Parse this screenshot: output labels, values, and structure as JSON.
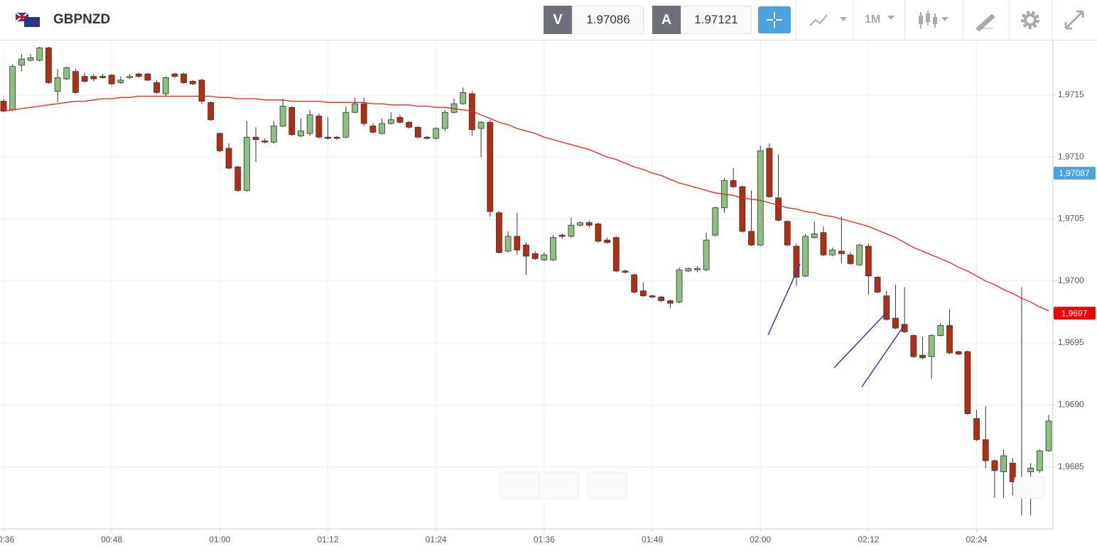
{
  "header": {
    "symbol": "GBPNZD",
    "bid_label": "V",
    "bid": 1.97086,
    "ask_label": "A",
    "ask": 1.97121,
    "timeframe": "1M"
  },
  "chart_data": {
    "type": "candlestick",
    "categories": [
      "00:36",
      null,
      null,
      null,
      null,
      null,
      null,
      null,
      null,
      null,
      null,
      null,
      "00:48",
      null,
      null,
      null,
      null,
      null,
      null,
      null,
      null,
      null,
      null,
      null,
      "01:00",
      null,
      null,
      null,
      null,
      null,
      null,
      null,
      null,
      null,
      null,
      null,
      "01:12",
      null,
      null,
      null,
      null,
      null,
      null,
      null,
      null,
      null,
      null,
      null,
      "01:24",
      null,
      null,
      null,
      null,
      null,
      null,
      null,
      null,
      null,
      null,
      null,
      "01:36",
      null,
      null,
      null,
      null,
      null,
      null,
      null,
      null,
      null,
      null,
      null,
      "01:48",
      null,
      null,
      null,
      null,
      null,
      null,
      null,
      null,
      null,
      null,
      null,
      "02:00",
      null,
      null,
      null,
      null,
      null,
      null,
      null,
      null,
      null,
      null,
      null,
      "02:12",
      null,
      null,
      null,
      null,
      null,
      null,
      null,
      null,
      null,
      null,
      null,
      "02:24",
      null,
      null,
      null,
      null,
      null,
      null,
      null,
      null
    ],
    "open": [
      1.97145,
      1.97138,
      1.97174,
      1.97178,
      1.97178,
      1.97188,
      1.97153,
      1.97163,
      1.97169,
      1.97165,
      1.97165,
      1.97165,
      1.97166,
      1.9716,
      1.97164,
      1.97167,
      1.97167,
      1.9716,
      1.97151,
      1.97167,
      1.97167,
      1.97161,
      1.97162,
      1.97144,
      1.97119,
      1.97107,
      1.97092,
      1.97073,
      1.97116,
      1.97113,
      1.97112,
      1.97125,
      1.9714,
      1.97117,
      1.97119,
      1.97133,
      1.97116,
      1.97116,
      1.97116,
      1.97136,
      1.97143,
      1.97125,
      1.97119,
      1.97127,
      1.97132,
      1.97128,
      1.97124,
      1.97116,
      1.97115,
      1.97123,
      1.97136,
      1.97143,
      1.97151,
      1.97123,
      1.97128,
      1.97055,
      1.97024,
      1.97036,
      1.97029,
      1.97022,
      1.97017,
      1.97017,
      1.97037,
      1.97036,
      1.97045,
      1.97047,
      1.97046,
      1.97033,
      1.97035,
      1.97008,
      1.97005,
      1.96992,
      1.96988,
      1.96987,
      1.96984,
      1.96983,
      1.97008,
      1.97009,
      1.97009,
      1.97037,
      1.97059,
      1.97081,
      1.97076,
      1.9704,
      1.97029,
      1.97107,
      1.97067,
      1.97048,
      1.97028,
      1.97004,
      1.97035,
      1.97039,
      1.97021,
      1.97024,
      1.97021,
      1.97013,
      1.97028,
      1.97003,
      1.96988,
      1.9697,
      1.96965,
      1.96956,
      1.9694,
      1.96939,
      1.96956,
      1.96964,
      1.96943,
      1.96943,
      1.96889,
      1.96872,
      1.96855,
      1.96846,
      1.96853,
      1.96838,
      1.96846,
      1.96847,
      1.96863
    ],
    "high": [
      1.97147,
      1.97175,
      1.97183,
      1.97183,
      1.97189,
      1.97189,
      1.97171,
      1.97173,
      1.97171,
      1.97168,
      1.97167,
      1.97167,
      1.97167,
      1.97165,
      1.97167,
      1.97168,
      1.97168,
      1.97162,
      1.97165,
      1.97168,
      1.97168,
      1.97162,
      1.97163,
      1.97145,
      1.9712,
      1.97111,
      1.97093,
      1.97129,
      1.97124,
      1.97115,
      1.97129,
      1.97147,
      1.97141,
      1.97131,
      1.97138,
      1.97135,
      1.97132,
      1.97117,
      1.97141,
      1.97148,
      1.97148,
      1.97127,
      1.97131,
      1.97136,
      1.97134,
      1.97129,
      1.97125,
      1.97117,
      1.97124,
      1.97138,
      1.97147,
      1.97156,
      1.97153,
      1.97129,
      1.9713,
      1.97056,
      1.9704,
      1.97055,
      1.97031,
      1.97024,
      1.97023,
      1.97037,
      1.97038,
      1.97051,
      1.97048,
      1.97049,
      1.97047,
      1.97035,
      1.97036,
      1.97009,
      1.97006,
      1.96999,
      1.96989,
      1.96988,
      1.96985,
      1.97011,
      1.97011,
      1.97012,
      1.97039,
      1.9706,
      1.97083,
      1.97091,
      1.97077,
      1.97073,
      1.97109,
      1.97111,
      1.97102,
      1.97049,
      1.9703,
      1.97038,
      1.97048,
      1.97044,
      1.97027,
      1.97052,
      1.97023,
      1.9703,
      1.9703,
      1.97004,
      1.96992,
      1.96997,
      1.96995,
      1.96957,
      1.96955,
      1.96957,
      1.96966,
      1.96977,
      1.96944,
      1.96944,
      1.96896,
      1.96899,
      1.96856,
      1.96864,
      1.96857,
      1.96995,
      1.96853,
      1.96864,
      1.96892
    ],
    "low": [
      1.97136,
      1.97137,
      1.97169,
      1.97177,
      1.97177,
      1.97159,
      1.97144,
      1.97162,
      1.97151,
      1.9716,
      1.97161,
      1.97163,
      1.97158,
      1.97159,
      1.97163,
      1.97164,
      1.97161,
      1.97151,
      1.97149,
      1.97164,
      1.97159,
      1.97158,
      1.97143,
      1.97129,
      1.97104,
      1.9709,
      1.97072,
      1.97072,
      1.97096,
      1.97111,
      1.97111,
      1.97124,
      1.97117,
      1.97116,
      1.97117,
      1.97115,
      1.97114,
      1.97114,
      1.97115,
      1.97135,
      1.97125,
      1.97119,
      1.97118,
      1.97126,
      1.97127,
      1.97123,
      1.97115,
      1.97114,
      1.97114,
      1.97121,
      1.97135,
      1.97142,
      1.97117,
      1.971,
      1.97052,
      1.97022,
      1.97023,
      1.97021,
      1.97005,
      1.97017,
      1.97016,
      1.97016,
      1.97034,
      1.97035,
      1.97044,
      1.97043,
      1.97031,
      1.9703,
      1.97007,
      1.97006,
      1.9699,
      1.96987,
      1.96986,
      1.96983,
      1.96978,
      1.96982,
      1.97007,
      1.97007,
      1.97008,
      1.97036,
      1.97055,
      1.97075,
      1.97039,
      1.97028,
      1.97028,
      1.97067,
      1.97048,
      1.97028,
      1.96996,
      1.97003,
      1.97034,
      1.9702,
      1.9702,
      1.97014,
      1.97013,
      1.97012,
      1.96989,
      1.9699,
      1.96968,
      1.96961,
      1.96958,
      1.96938,
      1.96937,
      1.96921,
      1.96955,
      1.96941,
      1.9694,
      1.96892,
      1.96871,
      1.96849,
      1.96825,
      1.96825,
      1.96827,
      1.96811,
      1.96811,
      1.96845,
      1.96862
    ],
    "close": [
      1.97137,
      1.97173,
      1.97179,
      1.9718,
      1.97188,
      1.9716,
      1.97164,
      1.97172,
      1.97152,
      1.97161,
      1.97163,
      1.97164,
      1.97159,
      1.97162,
      1.97165,
      1.97165,
      1.97162,
      1.97152,
      1.97164,
      1.97165,
      1.9716,
      1.97159,
      1.97145,
      1.9713,
      1.97105,
      1.97091,
      1.97073,
      1.97116,
      1.97114,
      1.97112,
      1.97125,
      1.97141,
      1.97118,
      1.97121,
      1.97134,
      1.97116,
      1.97115,
      1.97115,
      1.97136,
      1.97143,
      1.97127,
      1.9712,
      1.97127,
      1.9713,
      1.97128,
      1.97124,
      1.97116,
      1.97115,
      1.97123,
      1.97136,
      1.97143,
      1.97152,
      1.97122,
      1.97128,
      1.97056,
      1.97023,
      1.97036,
      1.97025,
      1.9702,
      1.97018,
      1.97021,
      1.97035,
      1.97036,
      1.97045,
      1.97047,
      1.97045,
      1.97032,
      1.97031,
      1.97008,
      1.97007,
      1.96991,
      1.96988,
      1.96987,
      1.96984,
      1.96982,
      1.97009,
      1.9701,
      1.9701,
      1.97033,
      1.97059,
      1.97081,
      1.97076,
      1.9704,
      1.97029,
      1.97105,
      1.97068,
      1.97049,
      1.97029,
      1.97003,
      1.97036,
      1.97038,
      1.97021,
      1.97025,
      1.97022,
      1.97014,
      1.97029,
      1.97004,
      1.96991,
      1.96969,
      1.96962,
      1.96959,
      1.96939,
      1.96938,
      1.96956,
      1.96964,
      1.96942,
      1.96941,
      1.96893,
      1.96872,
      1.96855,
      1.96847,
      1.96859,
      1.96838,
      1.96837,
      1.96849,
      1.96863,
      1.96887
    ],
    "up_color": "#8cc07f",
    "down_color": "#b52c12",
    "ma": {
      "color": "#e8231b",
      "values": [
        1.97137,
        1.97138,
        1.97139,
        1.9714,
        1.97141,
        1.97142,
        1.97143,
        1.97144,
        1.97145,
        1.97145,
        1.97146,
        1.97147,
        1.97147,
        1.97148,
        1.97148,
        1.97149,
        1.97149,
        1.97149,
        1.97149,
        1.97149,
        1.97149,
        1.97149,
        1.97149,
        1.97149,
        1.97148,
        1.97148,
        1.97147,
        1.97147,
        1.97147,
        1.97146,
        1.97146,
        1.97146,
        1.97145,
        1.97145,
        1.97145,
        1.97145,
        1.97144,
        1.97144,
        1.97144,
        1.97144,
        1.97144,
        1.97143,
        1.97143,
        1.97142,
        1.97142,
        1.97142,
        1.97141,
        1.97141,
        1.9714,
        1.9714,
        1.97139,
        1.97138,
        1.97137,
        1.97134,
        1.97131,
        1.97128,
        1.97126,
        1.97123,
        1.97121,
        1.97119,
        1.97116,
        1.97114,
        1.97112,
        1.9711,
        1.97108,
        1.97106,
        1.97103,
        1.971,
        1.97098,
        1.97095,
        1.97092,
        1.9709,
        1.97087,
        1.97085,
        1.97082,
        1.97079,
        1.97077,
        1.97075,
        1.97073,
        1.97071,
        1.9707,
        1.97069,
        1.97067,
        1.97066,
        1.97065,
        1.97063,
        1.97061,
        1.97059,
        1.97058,
        1.97056,
        1.97055,
        1.97053,
        1.97052,
        1.9705,
        1.97048,
        1.97046,
        1.97044,
        1.97041,
        1.97038,
        1.97035,
        1.97031,
        1.97027,
        1.97024,
        1.97021,
        1.97018,
        1.97015,
        1.97011,
        1.97008,
        1.97004,
        1.97,
        1.96997,
        1.96993,
        1.9699,
        1.96986,
        1.96983,
        1.96979,
        1.96976
      ]
    },
    "ylim": [
      1.968,
      1.97194
    ],
    "yticks": [
      {
        "value": 1.9685,
        "label": "1,9685"
      },
      {
        "value": 1.969,
        "label": "1,9690"
      },
      {
        "value": 1.9695,
        "label": "1,9695"
      },
      {
        "value": 1.97,
        "label": "1,9700"
      },
      {
        "value": 1.9705,
        "label": "1,9705"
      },
      {
        "value": 1.971,
        "label": "1,9710"
      },
      {
        "value": 1.9715,
        "label": "1,9715"
      }
    ],
    "price_tags": [
      {
        "value": 1.97087,
        "label": "1,97087",
        "color": "#4aa3df"
      },
      {
        "value": 1.96974,
        "label": "1,9697",
        "color": "#f20000"
      }
    ],
    "grid": true
  }
}
